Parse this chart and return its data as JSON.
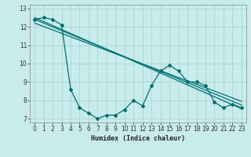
{
  "xlabel": "Humidex (Indice chaleur)",
  "ylabel": "",
  "background_color": "#c8ecec",
  "grid_color": "#b0d8d8",
  "line_color": "#007070",
  "xlim": [
    -0.5,
    23.5
  ],
  "ylim": [
    6.8,
    13.2
  ],
  "yticks": [
    7,
    8,
    9,
    10,
    11,
    12,
    13
  ],
  "xticks": [
    0,
    1,
    2,
    3,
    4,
    5,
    6,
    7,
    8,
    9,
    10,
    11,
    12,
    13,
    14,
    15,
    16,
    17,
    18,
    19,
    20,
    21,
    22,
    23
  ],
  "series": [
    [
      0,
      12.4
    ],
    [
      1,
      12.5
    ],
    [
      2,
      12.4
    ],
    [
      3,
      12.1
    ],
    [
      4,
      8.6
    ],
    [
      5,
      7.6
    ],
    [
      6,
      7.3
    ],
    [
      7,
      7.0
    ],
    [
      8,
      7.2
    ],
    [
      9,
      7.2
    ],
    [
      10,
      7.5
    ],
    [
      11,
      8.0
    ],
    [
      12,
      7.7
    ],
    [
      13,
      8.8
    ],
    [
      14,
      9.6
    ],
    [
      15,
      9.9
    ],
    [
      16,
      9.6
    ],
    [
      17,
      9.0
    ],
    [
      18,
      9.0
    ],
    [
      19,
      8.8
    ],
    [
      20,
      7.9
    ],
    [
      21,
      7.6
    ],
    [
      22,
      7.8
    ],
    [
      23,
      7.6
    ]
  ],
  "regression_lines": [
    {
      "x": [
        0,
        23
      ],
      "y": [
        12.5,
        7.55
      ]
    },
    {
      "x": [
        0,
        23
      ],
      "y": [
        12.4,
        7.75
      ]
    },
    {
      "x": [
        0,
        23
      ],
      "y": [
        12.2,
        7.95
      ]
    }
  ]
}
